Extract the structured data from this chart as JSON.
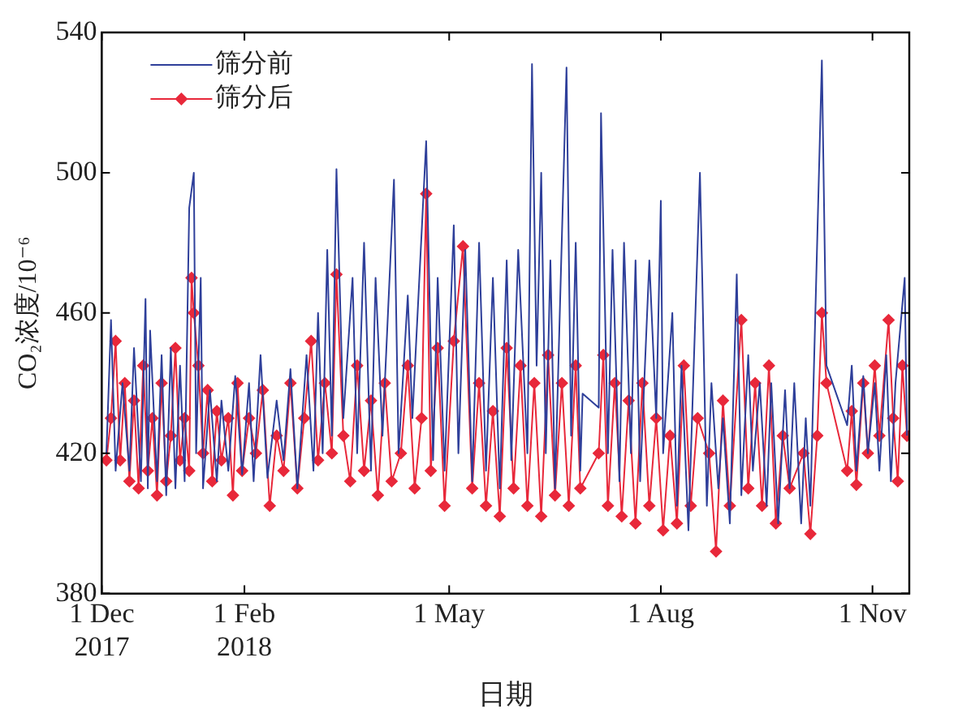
{
  "chart_data": {
    "type": "line",
    "xlabel": "日期",
    "ylabel": "CO₂浓度/10⁻⁶",
    "xlim": [
      "2017-12-01",
      "2018-11-17"
    ],
    "xticks": [
      {
        "value": "2017-12-01",
        "label": "1 Dec\n2017"
      },
      {
        "value": "2018-02-01",
        "label": "1 Feb\n2018"
      },
      {
        "value": "2018-05-01",
        "label": "1 May"
      },
      {
        "value": "2018-08-01",
        "label": "1 Aug"
      },
      {
        "value": "2018-11-01",
        "label": "1 Nov"
      }
    ],
    "ylim": [
      380,
      540
    ],
    "yticks": [
      380,
      420,
      460,
      500,
      540
    ],
    "grid": false,
    "legend": "top left",
    "line_style": "solid",
    "series": [
      {
        "name": "筛分前",
        "color": "#2e3f9a",
        "marker": "none",
        "x": [
          "2017-12-03",
          "2017-12-05",
          "2017-12-07",
          "2017-12-10",
          "2017-12-13",
          "2017-12-15",
          "2017-12-18",
          "2017-12-20",
          "2017-12-21",
          "2017-12-22",
          "2017-12-25",
          "2017-12-27",
          "2017-12-29",
          "2017-12-31",
          "2018-01-02",
          "2018-01-04",
          "2018-01-06",
          "2018-01-08",
          "2018-01-10",
          "2018-01-11",
          "2018-01-13",
          "2018-01-14",
          "2018-01-17",
          "2018-01-20",
          "2018-01-22",
          "2018-01-25",
          "2018-01-28",
          "2018-01-31",
          "2018-02-03",
          "2018-02-05",
          "2018-02-08",
          "2018-02-11",
          "2018-02-15",
          "2018-02-18",
          "2018-02-21",
          "2018-02-24",
          "2018-02-28",
          "2018-03-03",
          "2018-03-05",
          "2018-03-07",
          "2018-03-09",
          "2018-03-11",
          "2018-03-13",
          "2018-03-16",
          "2018-03-20",
          "2018-03-22",
          "2018-03-25",
          "2018-03-28",
          "2018-03-30",
          "2018-04-02",
          "2018-04-07",
          "2018-04-09",
          "2018-04-13",
          "2018-04-15",
          "2018-04-21",
          "2018-04-24",
          "2018-04-26",
          "2018-04-29",
          "2018-05-03",
          "2018-05-05",
          "2018-05-08",
          "2018-05-11",
          "2018-05-14",
          "2018-05-17",
          "2018-05-20",
          "2018-05-23",
          "2018-05-26",
          "2018-05-28",
          "2018-05-31",
          "2018-06-04",
          "2018-06-06",
          "2018-06-08",
          "2018-06-10",
          "2018-06-12",
          "2018-06-14",
          "2018-06-16",
          "2018-06-21",
          "2018-06-23",
          "2018-06-25",
          "2018-06-27",
          "2018-06-28",
          "2018-07-05",
          "2018-07-06",
          "2018-07-09",
          "2018-07-11",
          "2018-07-14",
          "2018-07-16",
          "2018-07-19",
          "2018-07-21",
          "2018-07-23",
          "2018-07-27",
          "2018-07-30",
          "2018-08-01",
          "2018-08-02",
          "2018-08-06",
          "2018-08-08",
          "2018-08-10",
          "2018-08-13",
          "2018-08-18",
          "2018-08-19",
          "2018-08-21",
          "2018-08-23",
          "2018-08-26",
          "2018-08-28",
          "2018-08-31",
          "2018-09-03",
          "2018-09-05",
          "2018-09-08",
          "2018-09-10",
          "2018-09-13",
          "2018-09-16",
          "2018-09-18",
          "2018-09-21",
          "2018-09-24",
          "2018-09-26",
          "2018-09-28",
          "2018-10-01",
          "2018-10-03",
          "2018-10-05",
          "2018-10-10",
          "2018-10-12",
          "2018-10-21",
          "2018-10-23",
          "2018-10-25",
          "2018-10-28",
          "2018-10-30",
          "2018-11-02",
          "2018-11-04",
          "2018-11-07",
          "2018-11-09",
          "2018-11-11",
          "2018-11-15",
          "2018-11-16"
        ],
        "values": [
          420,
          458,
          415,
          440,
          415,
          450,
          412,
          464,
          410,
          455,
          412,
          448,
          408,
          450,
          410,
          445,
          412,
          490,
          500,
          420,
          470,
          410,
          438,
          412,
          435,
          415,
          442,
          414,
          440,
          412,
          448,
          413,
          435,
          418,
          444,
          410,
          448,
          415,
          460,
          420,
          478,
          425,
          501,
          430,
          470,
          420,
          480,
          415,
          470,
          425,
          498,
          420,
          465,
          430,
          509,
          418,
          470,
          415,
          485,
          420,
          478,
          412,
          480,
          415,
          470,
          410,
          475,
          418,
          478,
          420,
          531,
          445,
          500,
          420,
          475,
          410,
          530,
          425,
          480,
          415,
          437,
          433,
          517,
          420,
          478,
          412,
          480,
          420,
          475,
          412,
          475,
          430,
          492,
          420,
          460,
          405,
          445,
          398,
          500,
          470,
          405,
          440,
          410,
          430,
          400,
          471,
          408,
          448,
          415,
          440,
          405,
          440,
          400,
          438,
          410,
          440,
          400,
          430,
          405,
          532,
          445,
          428,
          445,
          415,
          442,
          420,
          440,
          415,
          448,
          412,
          440,
          470,
          425
        ]
      },
      {
        "name": "筛分后",
        "color": "#e8283a",
        "marker": "diamond",
        "x": [
          "2017-12-03",
          "2017-12-05",
          "2017-12-07",
          "2017-12-09",
          "2017-12-11",
          "2017-12-13",
          "2017-12-15",
          "2017-12-17",
          "2017-12-19",
          "2017-12-21",
          "2017-12-23",
          "2017-12-25",
          "2017-12-27",
          "2017-12-29",
          "2017-12-31",
          "2018-01-02",
          "2018-01-04",
          "2018-01-06",
          "2018-01-08",
          "2018-01-09",
          "2018-01-10",
          "2018-01-12",
          "2018-01-14",
          "2018-01-16",
          "2018-01-18",
          "2018-01-20",
          "2018-01-22",
          "2018-01-25",
          "2018-01-27",
          "2018-01-29",
          "2018-01-31",
          "2018-02-03",
          "2018-02-06",
          "2018-02-09",
          "2018-02-12",
          "2018-02-15",
          "2018-02-18",
          "2018-02-21",
          "2018-02-24",
          "2018-02-27",
          "2018-03-02",
          "2018-03-05",
          "2018-03-08",
          "2018-03-11",
          "2018-03-13",
          "2018-03-16",
          "2018-03-19",
          "2018-03-22",
          "2018-03-25",
          "2018-03-28",
          "2018-03-31",
          "2018-04-03",
          "2018-04-06",
          "2018-04-10",
          "2018-04-13",
          "2018-04-16",
          "2018-04-19",
          "2018-04-21",
          "2018-04-23",
          "2018-04-26",
          "2018-04-29",
          "2018-05-03",
          "2018-05-07",
          "2018-05-11",
          "2018-05-14",
          "2018-05-17",
          "2018-05-20",
          "2018-05-23",
          "2018-05-26",
          "2018-05-29",
          "2018-06-01",
          "2018-06-04",
          "2018-06-07",
          "2018-06-10",
          "2018-06-13",
          "2018-06-16",
          "2018-06-19",
          "2018-06-22",
          "2018-06-25",
          "2018-06-27",
          "2018-07-05",
          "2018-07-07",
          "2018-07-09",
          "2018-07-12",
          "2018-07-15",
          "2018-07-18",
          "2018-07-21",
          "2018-07-24",
          "2018-07-27",
          "2018-07-30",
          "2018-08-02",
          "2018-08-05",
          "2018-08-08",
          "2018-08-11",
          "2018-08-14",
          "2018-08-17",
          "2018-08-22",
          "2018-08-25",
          "2018-08-28",
          "2018-08-31",
          "2018-09-05",
          "2018-09-08",
          "2018-09-11",
          "2018-09-14",
          "2018-09-17",
          "2018-09-20",
          "2018-09-23",
          "2018-09-26",
          "2018-10-02",
          "2018-10-05",
          "2018-10-08",
          "2018-10-10",
          "2018-10-12",
          "2018-10-21",
          "2018-10-23",
          "2018-10-25",
          "2018-10-28",
          "2018-10-30",
          "2018-11-02",
          "2018-11-04",
          "2018-11-08",
          "2018-11-10",
          "2018-11-12",
          "2018-11-14",
          "2018-11-16"
        ],
        "values": [
          418,
          430,
          452,
          418,
          440,
          412,
          435,
          410,
          445,
          415,
          430,
          408,
          440,
          412,
          425,
          450,
          418,
          430,
          415,
          470,
          460,
          445,
          420,
          438,
          412,
          432,
          418,
          430,
          408,
          440,
          415,
          430,
          420,
          438,
          405,
          425,
          415,
          440,
          410,
          430,
          452,
          418,
          440,
          420,
          471,
          425,
          412,
          445,
          415,
          435,
          408,
          440,
          412,
          420,
          445,
          410,
          430,
          494,
          415,
          450,
          405,
          452,
          479,
          410,
          440,
          405,
          432,
          402,
          450,
          410,
          445,
          405,
          440,
          402,
          448,
          408,
          440,
          405,
          445,
          410,
          420,
          448,
          405,
          440,
          402,
          435,
          400,
          440,
          405,
          430,
          398,
          425,
          400,
          445,
          405,
          430,
          420,
          392,
          435,
          405,
          458,
          410,
          440,
          405,
          445,
          400,
          425,
          410,
          420,
          397,
          425,
          460,
          440,
          415,
          432,
          411,
          440,
          420,
          445,
          425,
          458,
          430,
          412,
          445,
          425
        ]
      }
    ]
  }
}
